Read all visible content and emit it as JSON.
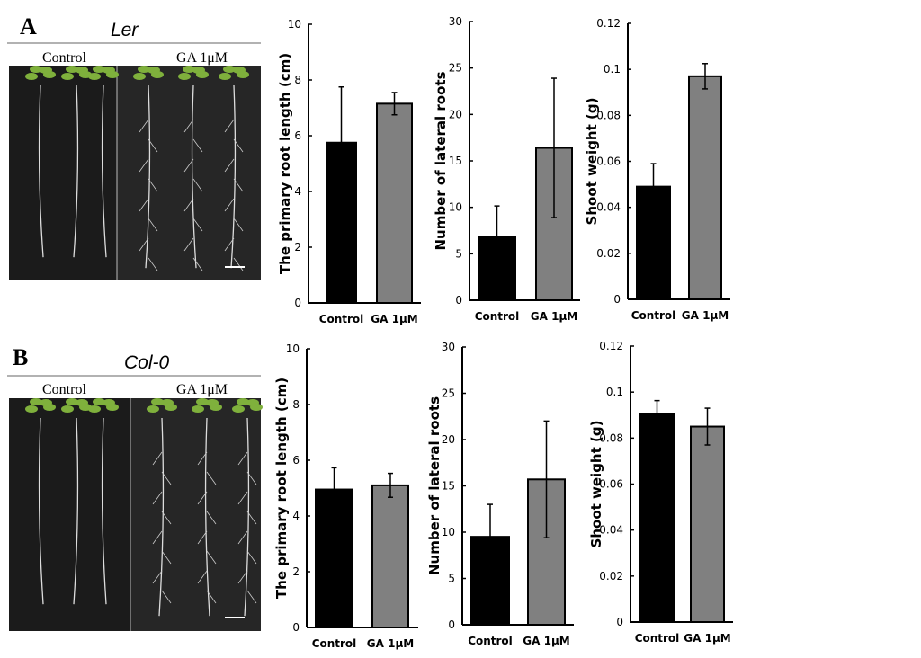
{
  "panels": [
    {
      "letter": "A",
      "genotype": "Ler",
      "control_label": "Control",
      "treatment_label": "GA 1μM"
    },
    {
      "letter": "B",
      "genotype": "Col-0",
      "control_label": "Control",
      "treatment_label": "GA 1μM"
    }
  ],
  "colors": {
    "control": "#000000",
    "treatment": "#808080"
  },
  "chart_data": [
    {
      "type": "bar",
      "panel": "A",
      "title": "",
      "xlabel": "",
      "ylabel": "The primary root length (cm)",
      "categories": [
        "Control",
        "GA 1μM"
      ],
      "values": [
        5.75,
        7.15
      ],
      "errors": [
        2.0,
        0.4
      ],
      "ylim": [
        0,
        10
      ],
      "yticks": [
        "0",
        "2",
        "4",
        "6",
        "8",
        "10"
      ],
      "grid": false
    },
    {
      "type": "bar",
      "panel": "A",
      "title": "",
      "xlabel": "",
      "ylabel": "Number of lateral roots",
      "categories": [
        "Control",
        "GA 1μM"
      ],
      "values": [
        6.85,
        16.4
      ],
      "errors": [
        3.3,
        7.5
      ],
      "ylim": [
        0,
        30
      ],
      "yticks": [
        "0",
        "5",
        "10",
        "15",
        "20",
        "25",
        "30"
      ],
      "grid": false
    },
    {
      "type": "bar",
      "panel": "A",
      "title": "",
      "xlabel": "",
      "ylabel": "Shoot weight (g)",
      "categories": [
        "Control",
        "GA 1μM"
      ],
      "values": [
        0.049,
        0.097
      ],
      "errors": [
        0.01,
        0.0055
      ],
      "ylim": [
        0,
        0.12
      ],
      "yticks": [
        "0",
        "0.02",
        "0.04",
        "0.06",
        "0.08",
        "0.1",
        "0.12"
      ],
      "grid": false
    },
    {
      "type": "bar",
      "panel": "B",
      "title": "",
      "xlabel": "",
      "ylabel": "The primary root length (cm)",
      "categories": [
        "Control",
        "GA 1μM"
      ],
      "values": [
        4.95,
        5.1
      ],
      "errors": [
        0.78,
        0.43
      ],
      "ylim": [
        0,
        10
      ],
      "yticks": [
        "0",
        "2",
        "4",
        "6",
        "8",
        "10"
      ],
      "grid": false
    },
    {
      "type": "bar",
      "panel": "B",
      "title": "",
      "xlabel": "",
      "ylabel": "Number of lateral roots",
      "categories": [
        "Control",
        "GA 1μM"
      ],
      "values": [
        9.5,
        15.7
      ],
      "errors": [
        3.5,
        6.3
      ],
      "ylim": [
        0,
        30
      ],
      "yticks": [
        "0",
        "5",
        "10",
        "15",
        "20",
        "25",
        "30"
      ],
      "grid": false
    },
    {
      "type": "bar",
      "panel": "B",
      "title": "",
      "xlabel": "",
      "ylabel": "Shoot weight (g)",
      "categories": [
        "Control",
        "GA 1μM"
      ],
      "values": [
        0.0905,
        0.085
      ],
      "errors": [
        0.0058,
        0.008
      ],
      "ylim": [
        0,
        0.12
      ],
      "yticks": [
        "0",
        "0.02",
        "0.04",
        "0.06",
        "0.08",
        "0.1",
        "0.12"
      ],
      "grid": false
    }
  ]
}
